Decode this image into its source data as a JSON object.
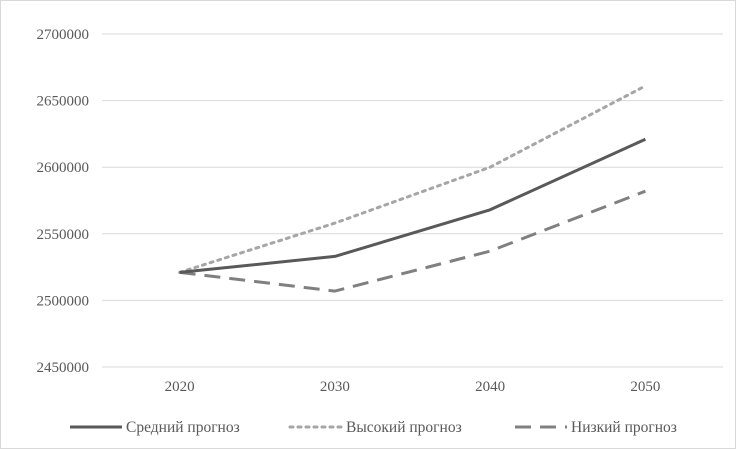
{
  "chart_data": {
    "type": "line",
    "title": "",
    "xlabel": "",
    "ylabel": "",
    "categories": [
      "2020",
      "2030",
      "2040",
      "2050"
    ],
    "ylim": [
      2450000,
      2700000
    ],
    "yticks": [
      "2700000",
      "2650000",
      "2600000",
      "2550000",
      "2500000",
      "2450000"
    ],
    "grid": true,
    "legend_position": "bottom",
    "series": [
      {
        "name": "Средний прогноз",
        "values": [
          2521000,
          2533000,
          2568000,
          2621000
        ],
        "style": "solid",
        "color": "#595959"
      },
      {
        "name": "Высокий прогноз",
        "values": [
          2521000,
          2558000,
          2600000,
          2661000
        ],
        "style": "dotted",
        "color": "#a6a6a6"
      },
      {
        "name": "Низкий прогноз",
        "values": [
          2521000,
          2507000,
          2537000,
          2582000
        ],
        "style": "dashed",
        "color": "#808080"
      }
    ]
  }
}
